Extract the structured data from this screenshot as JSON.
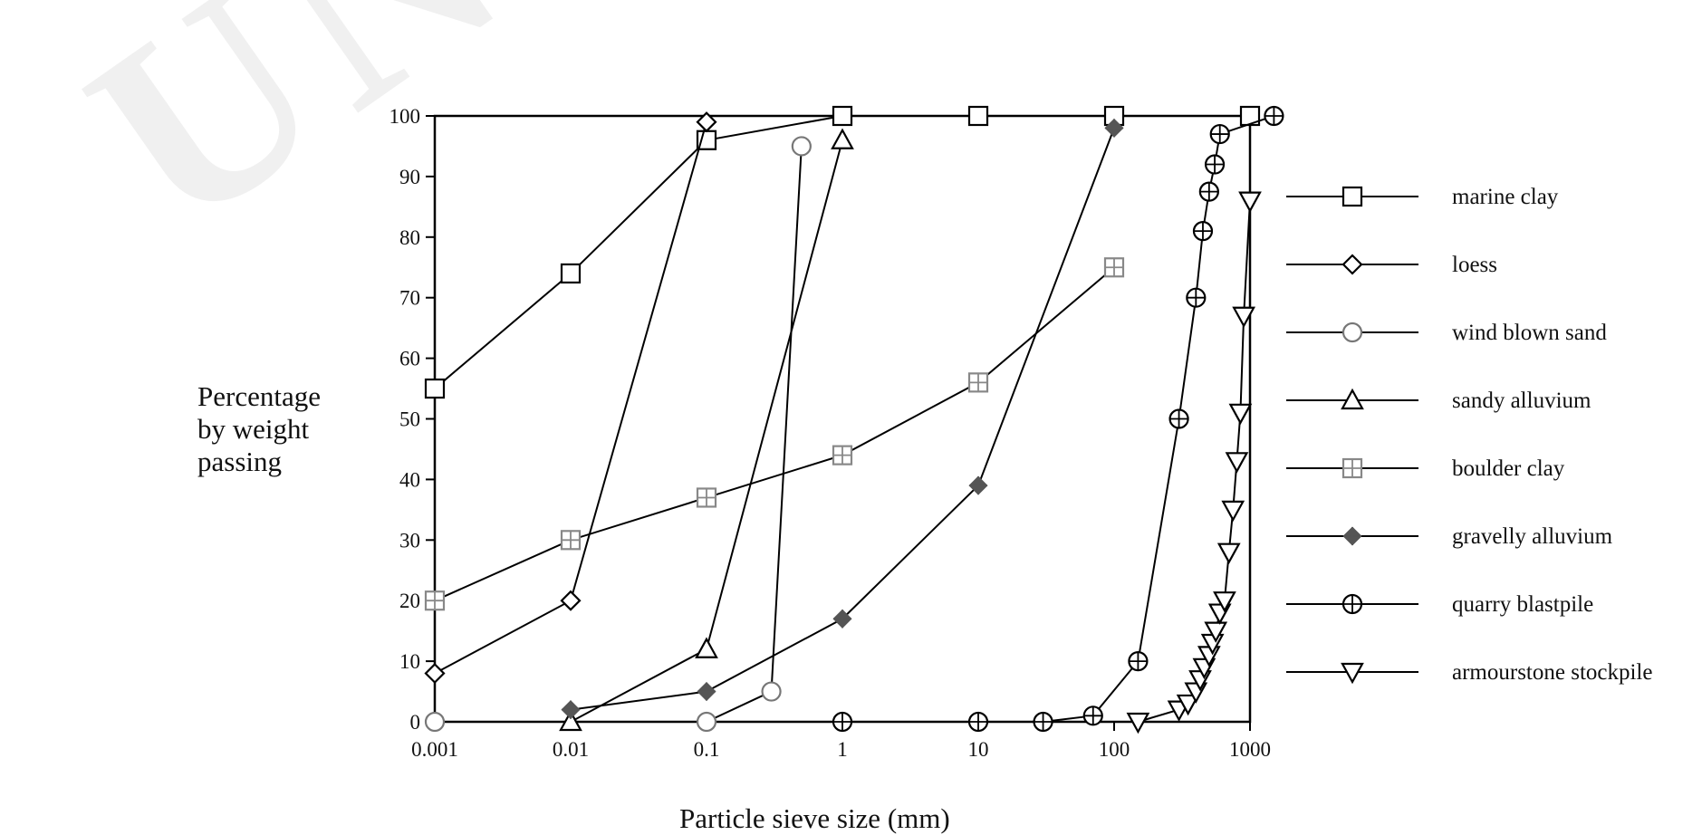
{
  "chart_data": {
    "type": "line",
    "xlabel": "Particle sieve size (mm)",
    "ylabel": "Percentage\nby weight\npassing",
    "x_scale": "log",
    "xlim": [
      0.001,
      1000
    ],
    "ylim": [
      0,
      100
    ],
    "x_ticks": [
      "0.001",
      "0.01",
      "0.1",
      "1",
      "10",
      "100",
      "1000"
    ],
    "y_ticks": [
      "0",
      "10",
      "20",
      "30",
      "40",
      "50",
      "60",
      "70",
      "80",
      "90",
      "100"
    ],
    "grid": false,
    "legend_position": "right",
    "series": [
      {
        "name": "marine clay",
        "marker": "square",
        "color": "#000000",
        "x": [
          0.001,
          0.01,
          0.1,
          1,
          10,
          100,
          1000
        ],
        "y": [
          55,
          74,
          96,
          100,
          100,
          100,
          100
        ]
      },
      {
        "name": "loess",
        "marker": "diamond",
        "color": "#000000",
        "x": [
          0.001,
          0.01,
          0.1
        ],
        "y": [
          8,
          20,
          99
        ]
      },
      {
        "name": "wind blown sand",
        "marker": "circle",
        "color": "#777777",
        "x": [
          0.001,
          0.1,
          0.3,
          0.5
        ],
        "y": [
          0,
          0,
          5,
          95
        ]
      },
      {
        "name": "sandy alluvium",
        "marker": "triangle-up",
        "color": "#000000",
        "x": [
          0.01,
          0.1,
          1
        ],
        "y": [
          0,
          12,
          96
        ]
      },
      {
        "name": "boulder clay",
        "marker": "square-plus",
        "color": "#888888",
        "x": [
          0.001,
          0.01,
          0.1,
          1,
          10,
          100
        ],
        "y": [
          20,
          30,
          37,
          44,
          56,
          75
        ]
      },
      {
        "name": "gravelly alluvium",
        "marker": "diamond-plus",
        "color": "#555555",
        "x": [
          0.01,
          0.1,
          1,
          10,
          100
        ],
        "y": [
          2,
          5,
          17,
          39,
          98
        ]
      },
      {
        "name": "quarry blastpile",
        "marker": "circle-plus",
        "color": "#000000",
        "x": [
          1,
          10,
          30,
          70,
          150,
          300,
          400,
          450,
          500,
          550,
          600,
          1500
        ],
        "y": [
          0,
          0,
          0,
          1,
          10,
          50,
          70,
          81,
          87.5,
          92,
          97,
          100
        ]
      },
      {
        "name": "armourstone stockpile",
        "marker": "triangle-down",
        "color": "#000000",
        "x": [
          150,
          300,
          350,
          400,
          430,
          460,
          500,
          530,
          560,
          600,
          650,
          700,
          750,
          800,
          850,
          900,
          1000
        ],
        "y": [
          0,
          2,
          3,
          5,
          7,
          9,
          11,
          13,
          15,
          18,
          20,
          28,
          35,
          43,
          51,
          67,
          86
        ]
      }
    ]
  }
}
